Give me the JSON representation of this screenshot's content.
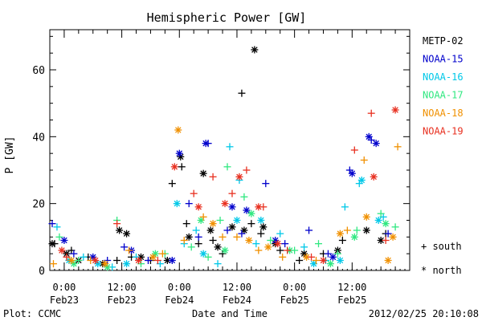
{
  "chart_data": {
    "type": "scatter",
    "title": "Hemispheric Power [GW]",
    "xlabel": "Date and Time",
    "ylabel": "P [GW]",
    "xlim": [
      "2012-02-22T21:00",
      "2012-02-26T00:00"
    ],
    "ylim": [
      0,
      72
    ],
    "y_ticks": [
      0,
      20,
      40,
      60
    ],
    "x_ticks": [
      {
        "x": "2012-02-23T00:00",
        "time": "0:00",
        "date": "Feb23"
      },
      {
        "x": "2012-02-23T12:00",
        "time": "12:00",
        "date": "Feb23"
      },
      {
        "x": "2012-02-24T00:00",
        "time": "0:00",
        "date": "Feb24"
      },
      {
        "x": "2012-02-24T12:00",
        "time": "12:00",
        "date": "Feb24"
      },
      {
        "x": "2012-02-25T00:00",
        "time": "0:00",
        "date": "Feb25"
      },
      {
        "x": "2012-02-25T12:00",
        "time": "12:00",
        "date": "Feb25"
      }
    ],
    "grid": false,
    "legend_position": "right",
    "marker_legend": [
      {
        "symbol": "+",
        "label": "south"
      },
      {
        "symbol": "*",
        "label": "north"
      }
    ],
    "series": [
      {
        "name": "METP-02",
        "color": "#000000",
        "south": [
          {
            "x": "2012-02-22T22:00",
            "y": 8
          },
          {
            "x": "2012-02-23T01:30",
            "y": 6
          },
          {
            "x": "2012-02-23T05:00",
            "y": 4
          },
          {
            "x": "2012-02-23T11:00",
            "y": 3
          },
          {
            "x": "2012-02-23T14:00",
            "y": 4
          },
          {
            "x": "2012-02-23T18:00",
            "y": 3
          },
          {
            "x": "2012-02-23T22:30",
            "y": 26
          },
          {
            "x": "2012-02-24T00:30",
            "y": 31
          },
          {
            "x": "2012-02-24T01:30",
            "y": 14
          },
          {
            "x": "2012-02-24T04:00",
            "y": 8
          },
          {
            "x": "2012-02-24T07:00",
            "y": 9
          },
          {
            "x": "2012-02-24T09:00",
            "y": 5
          },
          {
            "x": "2012-02-24T13:00",
            "y": 53
          },
          {
            "x": "2012-02-24T15:00",
            "y": 14
          },
          {
            "x": "2012-02-24T17:00",
            "y": 11
          },
          {
            "x": "2012-02-24T21:00",
            "y": 6
          },
          {
            "x": "2012-02-25T01:00",
            "y": 3
          },
          {
            "x": "2012-02-25T06:00",
            "y": 5
          },
          {
            "x": "2012-02-25T10:00",
            "y": 9
          },
          {
            "x": "2012-02-25T19:00",
            "y": 11
          }
        ],
        "north": [
          {
            "x": "2012-02-22T21:30",
            "y": 8
          },
          {
            "x": "2012-02-23T00:30",
            "y": 5
          },
          {
            "x": "2012-02-23T03:00",
            "y": 3
          },
          {
            "x": "2012-02-23T08:00",
            "y": 2
          },
          {
            "x": "2012-02-23T11:30",
            "y": 12
          },
          {
            "x": "2012-02-23T13:00",
            "y": 11
          },
          {
            "x": "2012-02-23T16:00",
            "y": 4
          },
          {
            "x": "2012-02-23T21:30",
            "y": 3
          },
          {
            "x": "2012-02-24T00:15",
            "y": 34
          },
          {
            "x": "2012-02-24T02:00",
            "y": 10
          },
          {
            "x": "2012-02-24T05:00",
            "y": 29
          },
          {
            "x": "2012-02-24T06:30",
            "y": 12
          },
          {
            "x": "2012-02-24T08:00",
            "y": 7
          },
          {
            "x": "2012-02-24T11:00",
            "y": 13
          },
          {
            "x": "2012-02-24T13:30",
            "y": 12
          },
          {
            "x": "2012-02-24T15:40",
            "y": 66
          },
          {
            "x": "2012-02-24T17:30",
            "y": 13
          },
          {
            "x": "2012-02-24T20:00",
            "y": 8
          },
          {
            "x": "2012-02-25T02:00",
            "y": 5
          },
          {
            "x": "2012-02-25T09:00",
            "y": 6
          },
          {
            "x": "2012-02-25T15:00",
            "y": 12
          },
          {
            "x": "2012-02-25T18:00",
            "y": 9
          }
        ]
      },
      {
        "name": "NOAA-15",
        "color": "#0000cc",
        "south": [
          {
            "x": "2012-02-22T21:30",
            "y": 14
          },
          {
            "x": "2012-02-23T02:00",
            "y": 5
          },
          {
            "x": "2012-02-23T09:00",
            "y": 3
          },
          {
            "x": "2012-02-23T12:30",
            "y": 7
          },
          {
            "x": "2012-02-23T17:30",
            "y": 3
          },
          {
            "x": "2012-02-24T02:00",
            "y": 20
          },
          {
            "x": "2012-02-24T04:00",
            "y": 10
          },
          {
            "x": "2012-02-24T06:00",
            "y": 38
          },
          {
            "x": "2012-02-24T10:00",
            "y": 12
          },
          {
            "x": "2012-02-24T13:00",
            "y": 11
          },
          {
            "x": "2012-02-24T18:00",
            "y": 26
          },
          {
            "x": "2012-02-24T22:00",
            "y": 8
          },
          {
            "x": "2012-02-25T03:00",
            "y": 12
          },
          {
            "x": "2012-02-25T07:00",
            "y": 5
          },
          {
            "x": "2012-02-25T11:30",
            "y": 30
          },
          {
            "x": "2012-02-25T16:00",
            "y": 39
          },
          {
            "x": "2012-02-25T19:30",
            "y": 11
          }
        ],
        "north": [
          {
            "x": "2012-02-23T00:00",
            "y": 9
          },
          {
            "x": "2012-02-23T06:00",
            "y": 4
          },
          {
            "x": "2012-02-23T14:00",
            "y": 6
          },
          {
            "x": "2012-02-23T22:30",
            "y": 3
          },
          {
            "x": "2012-02-24T00:00",
            "y": 35
          },
          {
            "x": "2012-02-24T05:30",
            "y": 38
          },
          {
            "x": "2012-02-24T11:00",
            "y": 19
          },
          {
            "x": "2012-02-24T14:00",
            "y": 18
          },
          {
            "x": "2012-02-24T20:00",
            "y": 9
          },
          {
            "x": "2012-02-25T08:00",
            "y": 4
          },
          {
            "x": "2012-02-25T12:00",
            "y": 29
          },
          {
            "x": "2012-02-25T15:30",
            "y": 40
          },
          {
            "x": "2012-02-25T17:00",
            "y": 38
          }
        ]
      },
      {
        "name": "NOAA-16",
        "color": "#00c8e8",
        "south": [
          {
            "x": "2012-02-22T22:30",
            "y": 13
          },
          {
            "x": "2012-02-23T04:00",
            "y": 4
          },
          {
            "x": "2012-02-23T10:00",
            "y": 1
          },
          {
            "x": "2012-02-23T15:00",
            "y": 4
          },
          {
            "x": "2012-02-23T20:00",
            "y": 2
          },
          {
            "x": "2012-02-24T01:00",
            "y": 8
          },
          {
            "x": "2012-02-24T03:30",
            "y": 12
          },
          {
            "x": "2012-02-24T08:00",
            "y": 2
          },
          {
            "x": "2012-02-24T10:30",
            "y": 37
          },
          {
            "x": "2012-02-24T12:30",
            "y": 27
          },
          {
            "x": "2012-02-24T16:00",
            "y": 8
          },
          {
            "x": "2012-02-24T21:00",
            "y": 11
          },
          {
            "x": "2012-02-25T02:00",
            "y": 7
          },
          {
            "x": "2012-02-25T06:30",
            "y": 3
          },
          {
            "x": "2012-02-25T10:30",
            "y": 19
          },
          {
            "x": "2012-02-25T13:30",
            "y": 26
          },
          {
            "x": "2012-02-25T18:30",
            "y": 16
          }
        ],
        "north": [
          {
            "x": "2012-02-23T01:00",
            "y": 3
          },
          {
            "x": "2012-02-23T07:00",
            "y": 2
          },
          {
            "x": "2012-02-23T13:00",
            "y": 2
          },
          {
            "x": "2012-02-23T23:30",
            "y": 20
          },
          {
            "x": "2012-02-24T05:00",
            "y": 5
          },
          {
            "x": "2012-02-24T12:00",
            "y": 15
          },
          {
            "x": "2012-02-24T17:00",
            "y": 15
          },
          {
            "x": "2012-02-25T04:00",
            "y": 2
          },
          {
            "x": "2012-02-25T09:30",
            "y": 3
          },
          {
            "x": "2012-02-25T14:00",
            "y": 27
          },
          {
            "x": "2012-02-25T17:30",
            "y": 15
          }
        ]
      },
      {
        "name": "NOAA-17",
        "color": "#30e880",
        "south": [
          {
            "x": "2012-02-22T23:00",
            "y": 10
          },
          {
            "x": "2012-02-23T03:00",
            "y": 3
          },
          {
            "x": "2012-02-23T11:00",
            "y": 15
          },
          {
            "x": "2012-02-23T16:00",
            "y": 2
          },
          {
            "x": "2012-02-23T21:00",
            "y": 5
          },
          {
            "x": "2012-02-24T02:30",
            "y": 7
          },
          {
            "x": "2012-02-24T06:00",
            "y": 4
          },
          {
            "x": "2012-02-24T08:30",
            "y": 15
          },
          {
            "x": "2012-02-24T10:00",
            "y": 31
          },
          {
            "x": "2012-02-24T13:30",
            "y": 22
          },
          {
            "x": "2012-02-24T19:00",
            "y": 9
          },
          {
            "x": "2012-02-25T00:00",
            "y": 6
          },
          {
            "x": "2012-02-25T05:00",
            "y": 8
          },
          {
            "x": "2012-02-25T09:00",
            "y": 5
          },
          {
            "x": "2012-02-25T13:00",
            "y": 12
          },
          {
            "x": "2012-02-25T18:00",
            "y": 17
          },
          {
            "x": "2012-02-25T21:00",
            "y": 13
          }
        ],
        "north": [
          {
            "x": "2012-02-23T02:00",
            "y": 2
          },
          {
            "x": "2012-02-23T09:00",
            "y": 1
          },
          {
            "x": "2012-02-23T19:00",
            "y": 5
          },
          {
            "x": "2012-02-24T04:30",
            "y": 15
          },
          {
            "x": "2012-02-24T09:30",
            "y": 6
          },
          {
            "x": "2012-02-24T15:00",
            "y": 17
          },
          {
            "x": "2012-02-24T23:00",
            "y": 6
          },
          {
            "x": "2012-02-25T07:30",
            "y": 2
          },
          {
            "x": "2012-02-25T12:30",
            "y": 10
          },
          {
            "x": "2012-02-25T19:00",
            "y": 14
          }
        ]
      },
      {
        "name": "NOAA-18",
        "color": "#f09000",
        "south": [
          {
            "x": "2012-02-22T21:45",
            "y": 2
          },
          {
            "x": "2012-02-23T05:30",
            "y": 3
          },
          {
            "x": "2012-02-23T13:30",
            "y": 6
          },
          {
            "x": "2012-02-23T20:30",
            "y": 5
          },
          {
            "x": "2012-02-24T01:00",
            "y": 9
          },
          {
            "x": "2012-02-24T05:00",
            "y": 16
          },
          {
            "x": "2012-02-24T09:00",
            "y": 10
          },
          {
            "x": "2012-02-24T12:00",
            "y": 10
          },
          {
            "x": "2012-02-24T16:30",
            "y": 6
          },
          {
            "x": "2012-02-24T21:30",
            "y": 4
          },
          {
            "x": "2012-02-25T04:30",
            "y": 3
          },
          {
            "x": "2012-02-25T11:00",
            "y": 12
          },
          {
            "x": "2012-02-25T14:30",
            "y": 33
          },
          {
            "x": "2012-02-25T21:30",
            "y": 37
          }
        ],
        "north": [
          {
            "x": "2012-02-23T01:30",
            "y": 3
          },
          {
            "x": "2012-02-23T08:30",
            "y": 2
          },
          {
            "x": "2012-02-23T18:30",
            "y": 4
          },
          {
            "x": "2012-02-23T23:45",
            "y": 42
          },
          {
            "x": "2012-02-24T07:00",
            "y": 14
          },
          {
            "x": "2012-02-24T14:30",
            "y": 9
          },
          {
            "x": "2012-02-24T18:30",
            "y": 7
          },
          {
            "x": "2012-02-25T02:30",
            "y": 4
          },
          {
            "x": "2012-02-25T09:30",
            "y": 11
          },
          {
            "x": "2012-02-25T15:00",
            "y": 16
          },
          {
            "x": "2012-02-25T19:30",
            "y": 3
          },
          {
            "x": "2012-02-25T20:30",
            "y": 10
          }
        ]
      },
      {
        "name": "NOAA-19",
        "color": "#e83020",
        "south": [
          {
            "x": "2012-02-23T00:30",
            "y": 4
          },
          {
            "x": "2012-02-23T11:00",
            "y": 14
          },
          {
            "x": "2012-02-23T19:30",
            "y": 3
          },
          {
            "x": "2012-02-24T03:00",
            "y": 23
          },
          {
            "x": "2012-02-24T07:00",
            "y": 28
          },
          {
            "x": "2012-02-24T11:00",
            "y": 23
          },
          {
            "x": "2012-02-24T14:00",
            "y": 30
          },
          {
            "x": "2012-02-24T17:30",
            "y": 19
          },
          {
            "x": "2012-02-24T22:30",
            "y": 6
          },
          {
            "x": "2012-02-25T03:30",
            "y": 4
          },
          {
            "x": "2012-02-25T12:30",
            "y": 36
          },
          {
            "x": "2012-02-25T16:00",
            "y": 47
          },
          {
            "x": "2012-02-25T19:00",
            "y": 9
          }
        ],
        "north": [
          {
            "x": "2012-02-22T23:30",
            "y": 6
          },
          {
            "x": "2012-02-23T06:30",
            "y": 3
          },
          {
            "x": "2012-02-23T15:30",
            "y": 3
          },
          {
            "x": "2012-02-23T23:00",
            "y": 31
          },
          {
            "x": "2012-02-24T04:00",
            "y": 19
          },
          {
            "x": "2012-02-24T09:30",
            "y": 20
          },
          {
            "x": "2012-02-24T12:30",
            "y": 28
          },
          {
            "x": "2012-02-24T16:30",
            "y": 19
          },
          {
            "x": "2012-02-24T20:30",
            "y": 8
          },
          {
            "x": "2012-02-25T06:00",
            "y": 3
          },
          {
            "x": "2012-02-25T16:30",
            "y": 28
          },
          {
            "x": "2012-02-25T21:00",
            "y": 48
          }
        ]
      }
    ]
  },
  "footer": {
    "plot_credit": "Plot: CCMC",
    "timestamp": "2012/02/25 20:10:08"
  }
}
